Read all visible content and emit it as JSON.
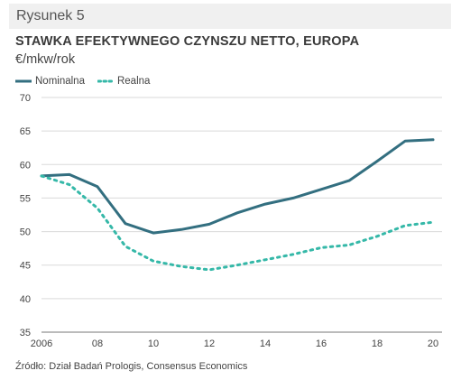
{
  "figure": {
    "label": "Rysunek 5",
    "title": "STAWKA EFEKTYWNEGO CZYNSZU NETTO, EUROPA",
    "unit": "€/mkw/rok",
    "source": "Źródło: Dział Badań Prologis, Consensus Economics"
  },
  "colors": {
    "nominal": "#336f80",
    "real": "#35b8a8",
    "grid": "#dadada",
    "axis": "#777777",
    "header_bg": "#f0f0f0"
  },
  "chart_data": {
    "type": "line",
    "x_tick_labels": [
      "2006",
      "08",
      "10",
      "12",
      "14",
      "16",
      "18",
      "20"
    ],
    "y_tick_labels": [
      "35",
      "40",
      "45",
      "50",
      "55",
      "60",
      "65",
      "70"
    ],
    "xlim": [
      2006,
      2020
    ],
    "ylim": [
      35,
      70
    ],
    "grid": true,
    "legend_position": "top-left",
    "series": [
      {
        "name": "Nominalna",
        "style": "solid",
        "color": "#336f80",
        "points": [
          [
            2006,
            58.3
          ],
          [
            2007,
            58.5
          ],
          [
            2008,
            56.7
          ],
          [
            2009,
            51.2
          ],
          [
            2010,
            49.8
          ],
          [
            2011,
            50.3
          ],
          [
            2012,
            51.1
          ],
          [
            2013,
            52.8
          ],
          [
            2014,
            54.1
          ],
          [
            2015,
            55.0
          ],
          [
            2016,
            56.3
          ],
          [
            2017,
            57.6
          ],
          [
            2018,
            60.5
          ],
          [
            2019,
            63.5
          ],
          [
            2020,
            63.7
          ]
        ]
      },
      {
        "name": "Realna",
        "style": "dotted",
        "color": "#35b8a8",
        "points": [
          [
            2006,
            58.3
          ],
          [
            2007,
            57.0
          ],
          [
            2008,
            53.5
          ],
          [
            2009,
            47.8
          ],
          [
            2010,
            45.6
          ],
          [
            2011,
            44.8
          ],
          [
            2012,
            44.3
          ],
          [
            2013,
            45.0
          ],
          [
            2014,
            45.8
          ],
          [
            2015,
            46.6
          ],
          [
            2016,
            47.6
          ],
          [
            2017,
            48.0
          ],
          [
            2018,
            49.3
          ],
          [
            2019,
            50.9
          ],
          [
            2020,
            51.4
          ]
        ]
      }
    ]
  }
}
